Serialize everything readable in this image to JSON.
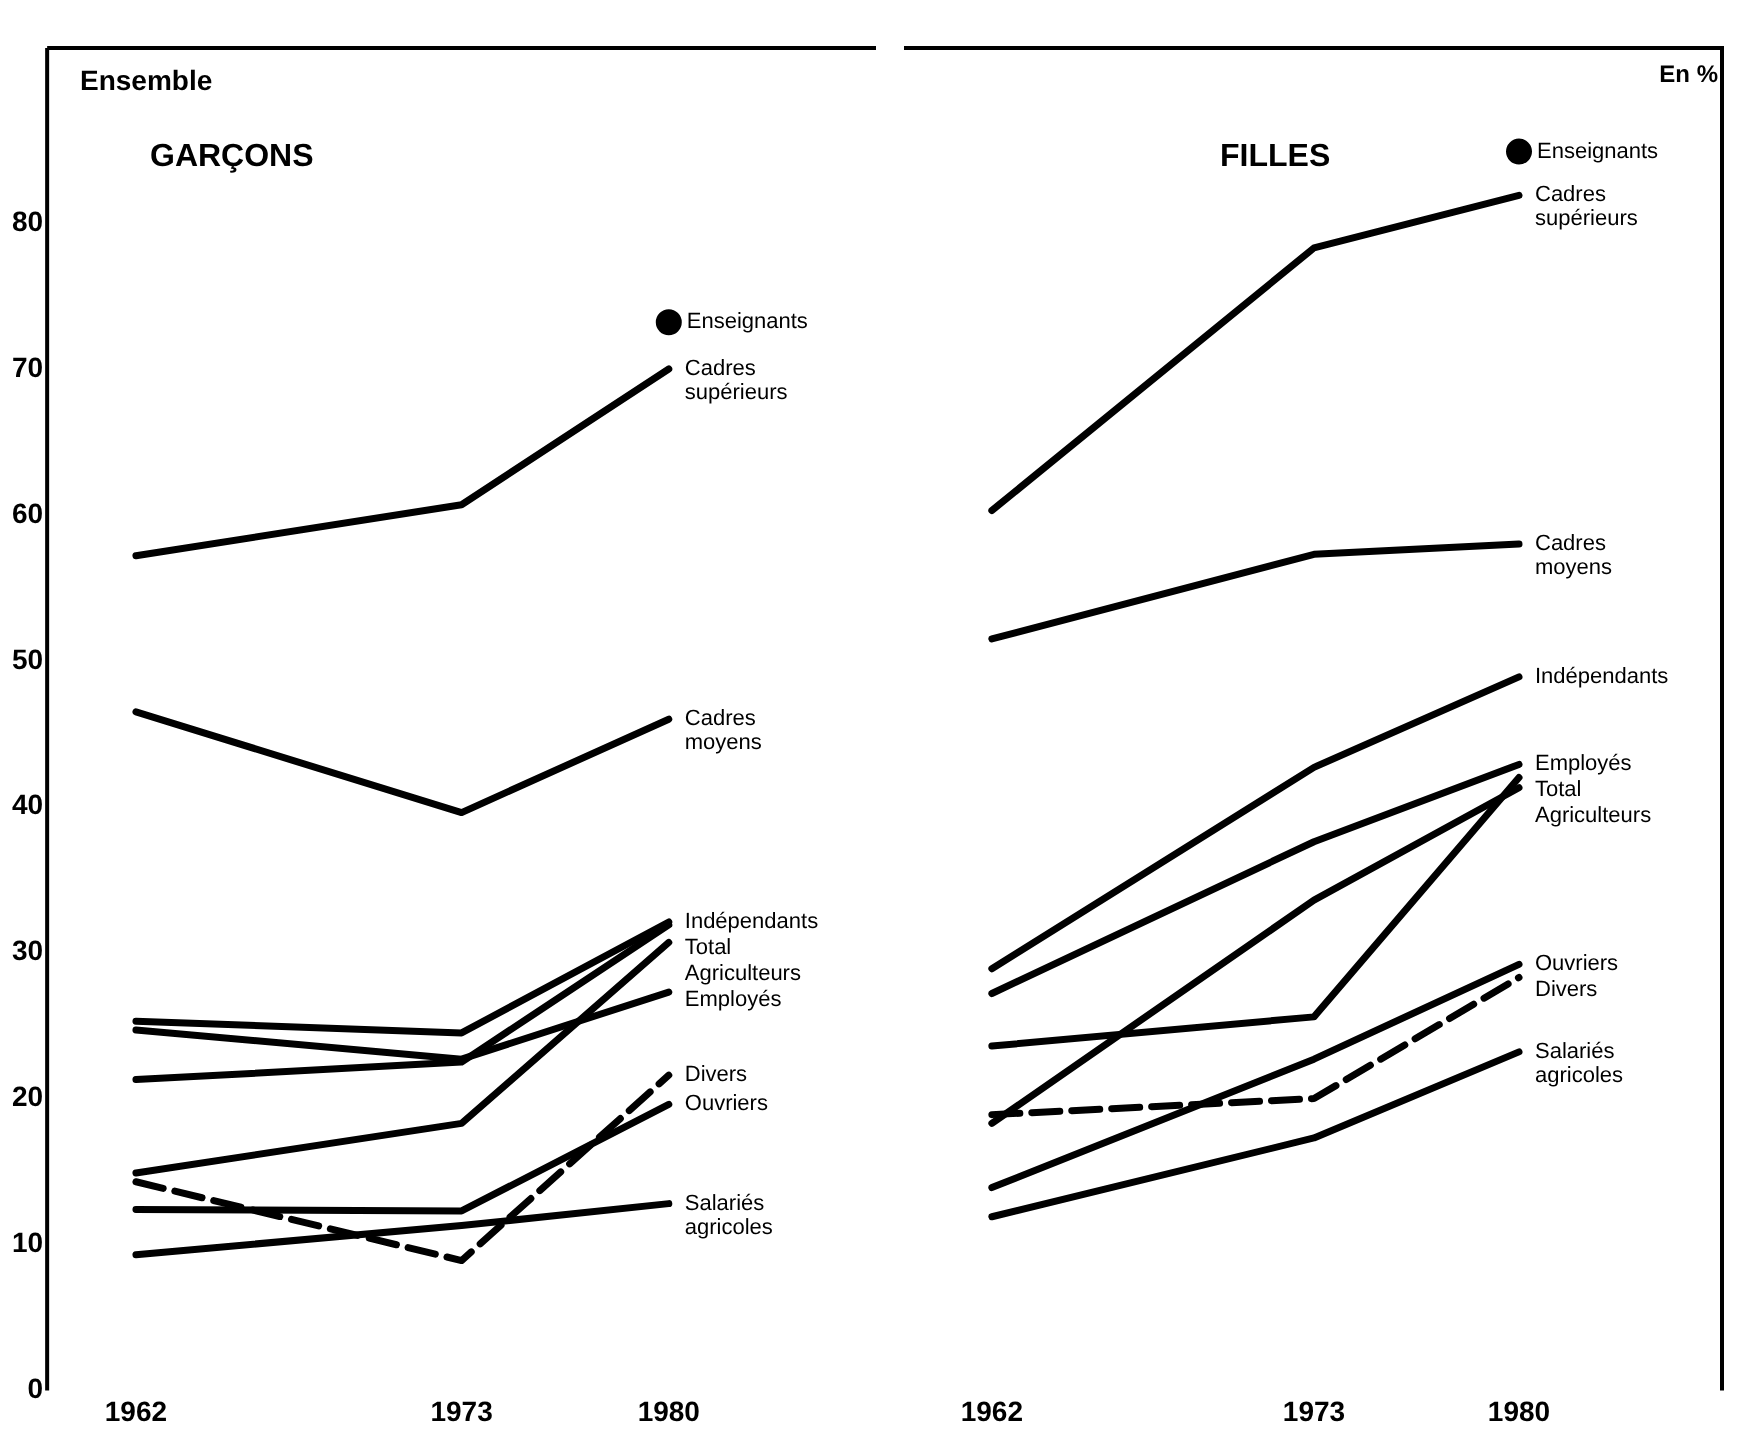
{
  "chart_data": [
    {
      "type": "line",
      "title": "GARÇONS",
      "annotations": [
        "Ensemble"
      ],
      "x": [
        1962,
        1973,
        1980
      ],
      "xlim": [
        1959,
        1987
      ],
      "xticks": [
        1962,
        1973,
        1980
      ],
      "ylim": [
        0,
        92
      ],
      "yticks": [
        0,
        10,
        20,
        30,
        40,
        50,
        60,
        70,
        80
      ],
      "grid": false,
      "legend": false,
      "series": [
        {
          "name": "Enseignants",
          "type": "scatter",
          "marker": "circle",
          "color": "#000000",
          "x": [
            1980
          ],
          "values": [
            73.2
          ]
        },
        {
          "name": "Cadres supérieurs",
          "color": "#000000",
          "values": [
            57.2,
            60.7,
            70
          ]
        },
        {
          "name": "Cadres moyens",
          "color": "#000000",
          "values": [
            46.5,
            39.6,
            46
          ]
        },
        {
          "name": "Indépendants",
          "color": "#000000",
          "values": [
            25.3,
            24.5,
            32.1
          ]
        },
        {
          "name": "Total",
          "color": "#000000",
          "values": [
            21.3,
            22.5,
            31.9
          ]
        },
        {
          "name": "Agriculteurs",
          "color": "#000000",
          "values": [
            14.9,
            18.3,
            30.7
          ]
        },
        {
          "name": "Employés",
          "color": "#000000",
          "values": [
            24.7,
            22.7,
            27.3
          ]
        },
        {
          "name": "Divers",
          "color": "#000000",
          "line_style": "dashed",
          "values": [
            14.3,
            8.9,
            21.6
          ]
        },
        {
          "name": "Ouvriers",
          "color": "#000000",
          "values": [
            12.4,
            12.3,
            19.6
          ]
        },
        {
          "name": "Salariés agricoles",
          "color": "#000000",
          "values": [
            9.3,
            11.3,
            12.8
          ]
        }
      ]
    },
    {
      "type": "line",
      "title": "FILLES",
      "annotations": [
        "En %"
      ],
      "tick_labels": "x",
      "x": [
        1962,
        1973,
        1980
      ],
      "xlim": [
        1959,
        1987
      ],
      "xticks": [
        1962,
        1973,
        1980
      ],
      "ylim": [
        0,
        92
      ],
      "yticks": [
        0,
        10,
        20,
        30,
        40,
        50,
        60,
        70,
        80
      ],
      "grid": false,
      "legend": false,
      "series": [
        {
          "name": "Enseignants",
          "type": "scatter",
          "marker": "circle",
          "color": "#000000",
          "x": [
            1980
          ],
          "values": [
            84.9
          ]
        },
        {
          "name": "Cadres supérieurs",
          "color": "#000000",
          "values": [
            60.3,
            78.3,
            81.9
          ]
        },
        {
          "name": "Cadres moyens",
          "color": "#000000",
          "values": [
            51.5,
            57.3,
            58
          ]
        },
        {
          "name": "Indépendants",
          "color": "#000000",
          "values": [
            28.9,
            42.7,
            48.9
          ]
        },
        {
          "name": "Employés",
          "color": "#000000",
          "values": [
            27.2,
            37.6,
            42.9
          ]
        },
        {
          "name": "Total",
          "color": "#000000",
          "values": [
            23.6,
            25.6,
            42
          ]
        },
        {
          "name": "Agriculteurs",
          "color": "#000000",
          "values": [
            18.3,
            33.6,
            41.3
          ]
        },
        {
          "name": "Ouvriers",
          "color": "#000000",
          "values": [
            13.9,
            22.7,
            29.2
          ]
        },
        {
          "name": "Divers",
          "color": "#000000",
          "line_style": "dashed",
          "values": [
            18.9,
            20,
            28.3
          ]
        },
        {
          "name": "Salariés agricoles",
          "color": "#000000",
          "values": [
            11.9,
            17.3,
            23.2
          ]
        }
      ]
    }
  ]
}
